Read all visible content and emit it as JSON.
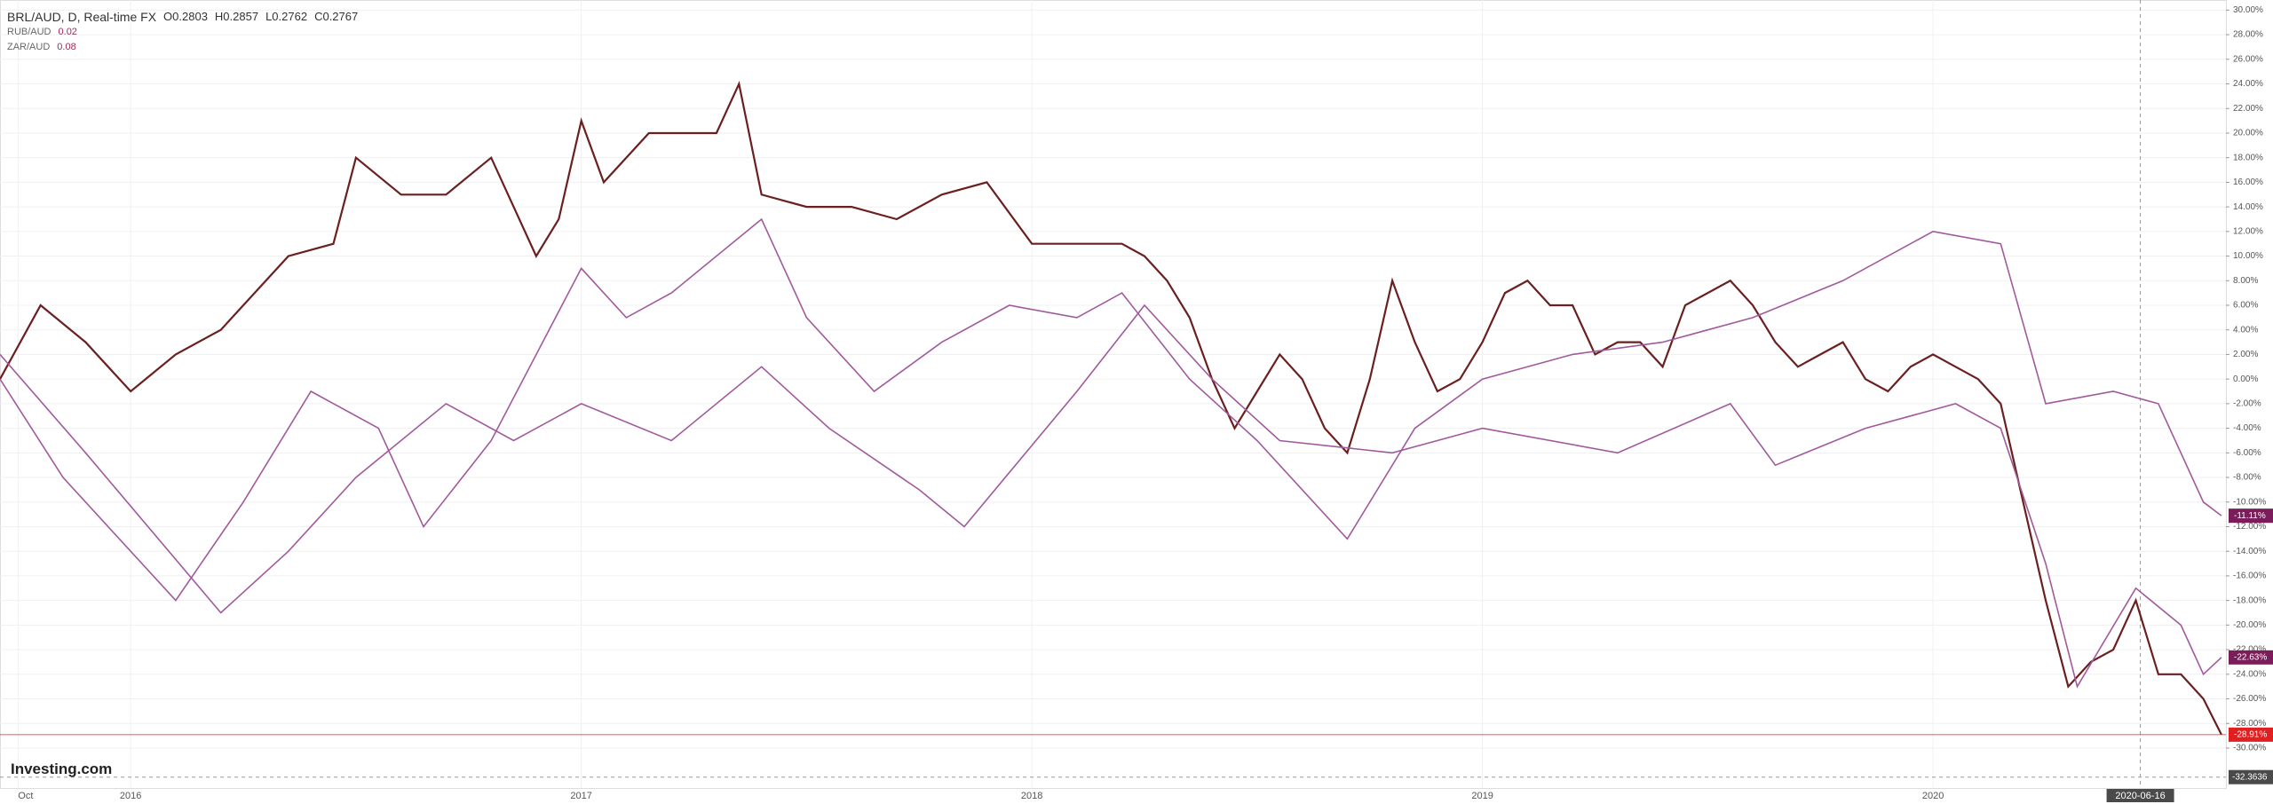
{
  "header": {
    "title": "BRL/AUD, D, Real-time FX",
    "ohlc": [
      "O0.2803",
      "H0.2857",
      "L0.2762",
      "C0.2767"
    ],
    "logo": "Investing.com"
  },
  "chart_data": {
    "type": "line",
    "xlim": [
      2015.71,
      2020.65
    ],
    "ylim": [
      -33.25,
      30.82
    ],
    "xticks": [
      {
        "value": 2015.75,
        "label": "Oct"
      },
      2016,
      2017,
      2018,
      2019,
      2020
    ],
    "x_cursor": {
      "value": 2020.46,
      "label": "2020-06-16"
    },
    "y_cursor": -32.3636,
    "yticks": [
      {
        "value": 30,
        "label": "30.00%"
      },
      {
        "value": 28,
        "label": "28.00%"
      },
      {
        "value": 26,
        "label": "26.00%"
      },
      {
        "value": 24,
        "label": "24.00%"
      },
      {
        "value": 22,
        "label": "22.00%"
      },
      {
        "value": 20,
        "label": "20.00%"
      },
      {
        "value": 18,
        "label": "18.00%"
      },
      {
        "value": 16,
        "label": "16.00%"
      },
      {
        "value": 14,
        "label": "14.00%"
      },
      {
        "value": 12,
        "label": "12.00%"
      },
      {
        "value": 10,
        "label": "10.00%"
      },
      {
        "value": 8,
        "label": "8.00%"
      },
      {
        "value": 6,
        "label": "6.00%"
      },
      {
        "value": 4,
        "label": "4.00%"
      },
      {
        "value": 2,
        "label": "2.00%"
      },
      {
        "value": 0,
        "label": "0.00%"
      },
      {
        "value": -2,
        "label": "-2.00%"
      },
      {
        "value": -4,
        "label": "-4.00%"
      },
      {
        "value": -6,
        "label": "-6.00%"
      },
      {
        "value": -8,
        "label": "-8.00%"
      },
      {
        "value": -10,
        "label": "-10.00%"
      },
      {
        "value": -12,
        "label": "-12.00%"
      },
      {
        "value": -14,
        "label": "-14.00%"
      },
      {
        "value": -16,
        "label": "-16.00%"
      },
      {
        "value": -18,
        "label": "-18.00%"
      },
      {
        "value": -20,
        "label": "-20.00%"
      },
      {
        "value": -22,
        "label": "-22.00%"
      },
      {
        "value": -24,
        "label": "-24.00%"
      },
      {
        "value": -26,
        "label": "-26.00%"
      },
      {
        "value": -28,
        "label": "-28.00%"
      },
      {
        "value": -30,
        "label": "-30.00%"
      }
    ],
    "grid": true,
    "series": [
      {
        "name": "BRL/AUD",
        "color": "#6b1f1f",
        "end_label": {
          "value": -28.91,
          "label": "-28.91%"
        },
        "end_color": "#e02020",
        "x": [
          2015.71,
          2015.8,
          2015.9,
          2016.0,
          2016.1,
          2016.2,
          2016.35,
          2016.45,
          2016.5,
          2016.6,
          2016.7,
          2016.8,
          2016.85,
          2016.9,
          2016.95,
          2017.0,
          2017.05,
          2017.15,
          2017.3,
          2017.35,
          2017.4,
          2017.5,
          2017.6,
          2017.7,
          2017.8,
          2017.9,
          2018.0,
          2018.1,
          2018.2,
          2018.25,
          2018.3,
          2018.35,
          2018.4,
          2018.45,
          2018.5,
          2018.55,
          2018.6,
          2018.65,
          2018.7,
          2018.75,
          2018.8,
          2018.85,
          2018.9,
          2018.95,
          2019.0,
          2019.05,
          2019.1,
          2019.15,
          2019.2,
          2019.25,
          2019.3,
          2019.35,
          2019.4,
          2019.45,
          2019.5,
          2019.55,
          2019.6,
          2019.65,
          2019.7,
          2019.75,
          2019.8,
          2019.85,
          2019.9,
          2019.95,
          2020.0,
          2020.05,
          2020.1,
          2020.15,
          2020.2,
          2020.25,
          2020.3,
          2020.35,
          2020.4,
          2020.45,
          2020.5,
          2020.55,
          2020.6,
          2020.64
        ],
        "values": [
          0,
          6,
          3,
          -1,
          2,
          4,
          10,
          11,
          18,
          15,
          15,
          18,
          14,
          10,
          13,
          21,
          16,
          20,
          20,
          24,
          15,
          14,
          14,
          13,
          15,
          16,
          11,
          11,
          11,
          10,
          8,
          5,
          0,
          -4,
          -1,
          2,
          0,
          -4,
          -6,
          0,
          8,
          3,
          -1,
          0,
          3,
          7,
          8,
          6,
          6,
          2,
          3,
          3,
          1,
          6,
          7,
          8,
          6,
          3,
          1,
          2,
          3,
          0,
          -1,
          1,
          2,
          1,
          0,
          -2,
          -10,
          -18,
          -25,
          -23,
          -22,
          -18,
          -24,
          -24,
          -26,
          -28.91
        ]
      },
      {
        "name": "RUB/AUD",
        "color": "#a05a9c",
        "value_text": "0.02",
        "end_label": {
          "value": -11.11,
          "label": "-11.11%"
        },
        "end_color": "#7a1d5a",
        "x": [
          2015.71,
          2015.85,
          2016.1,
          2016.25,
          2016.4,
          2016.55,
          2016.65,
          2016.8,
          2017.0,
          2017.1,
          2017.2,
          2017.4,
          2017.5,
          2017.65,
          2017.8,
          2017.95,
          2018.1,
          2018.2,
          2018.35,
          2018.5,
          2018.7,
          2018.85,
          2019.0,
          2019.2,
          2019.4,
          2019.6,
          2019.8,
          2020.0,
          2020.15,
          2020.25,
          2020.4,
          2020.5,
          2020.6,
          2020.64
        ],
        "values": [
          0,
          -8,
          -18,
          -10,
          -1,
          -4,
          -12,
          -5,
          9,
          5,
          7,
          13,
          5,
          -1,
          3,
          6,
          5,
          7,
          0,
          -5,
          -13,
          -4,
          0,
          2,
          3,
          5,
          8,
          12,
          11,
          -2,
          -1,
          -2,
          -10,
          -11.11
        ]
      },
      {
        "name": "ZAR/AUD",
        "color": "#a05a9c",
        "value_text": "0.08",
        "end_label": {
          "value": -22.63,
          "label": "-22.63%"
        },
        "end_color": "#7a1d5a",
        "x": [
          2015.71,
          2015.9,
          2016.2,
          2016.35,
          2016.5,
          2016.7,
          2016.85,
          2017.0,
          2017.2,
          2017.4,
          2017.55,
          2017.75,
          2017.85,
          2018.1,
          2018.25,
          2018.4,
          2018.55,
          2018.8,
          2019.0,
          2019.3,
          2019.55,
          2019.65,
          2019.85,
          2020.05,
          2020.15,
          2020.25,
          2020.32,
          2020.45,
          2020.55,
          2020.6,
          2020.64
        ],
        "values": [
          2,
          -6,
          -19,
          -14,
          -8,
          -2,
          -5,
          -2,
          -5,
          1,
          -4,
          -9,
          -12,
          -1,
          6,
          0,
          -5,
          -6,
          -4,
          -6,
          -2,
          -7,
          -4,
          -2,
          -4,
          -15,
          -25,
          -17,
          -20,
          -24,
          -22.63
        ]
      }
    ]
  }
}
